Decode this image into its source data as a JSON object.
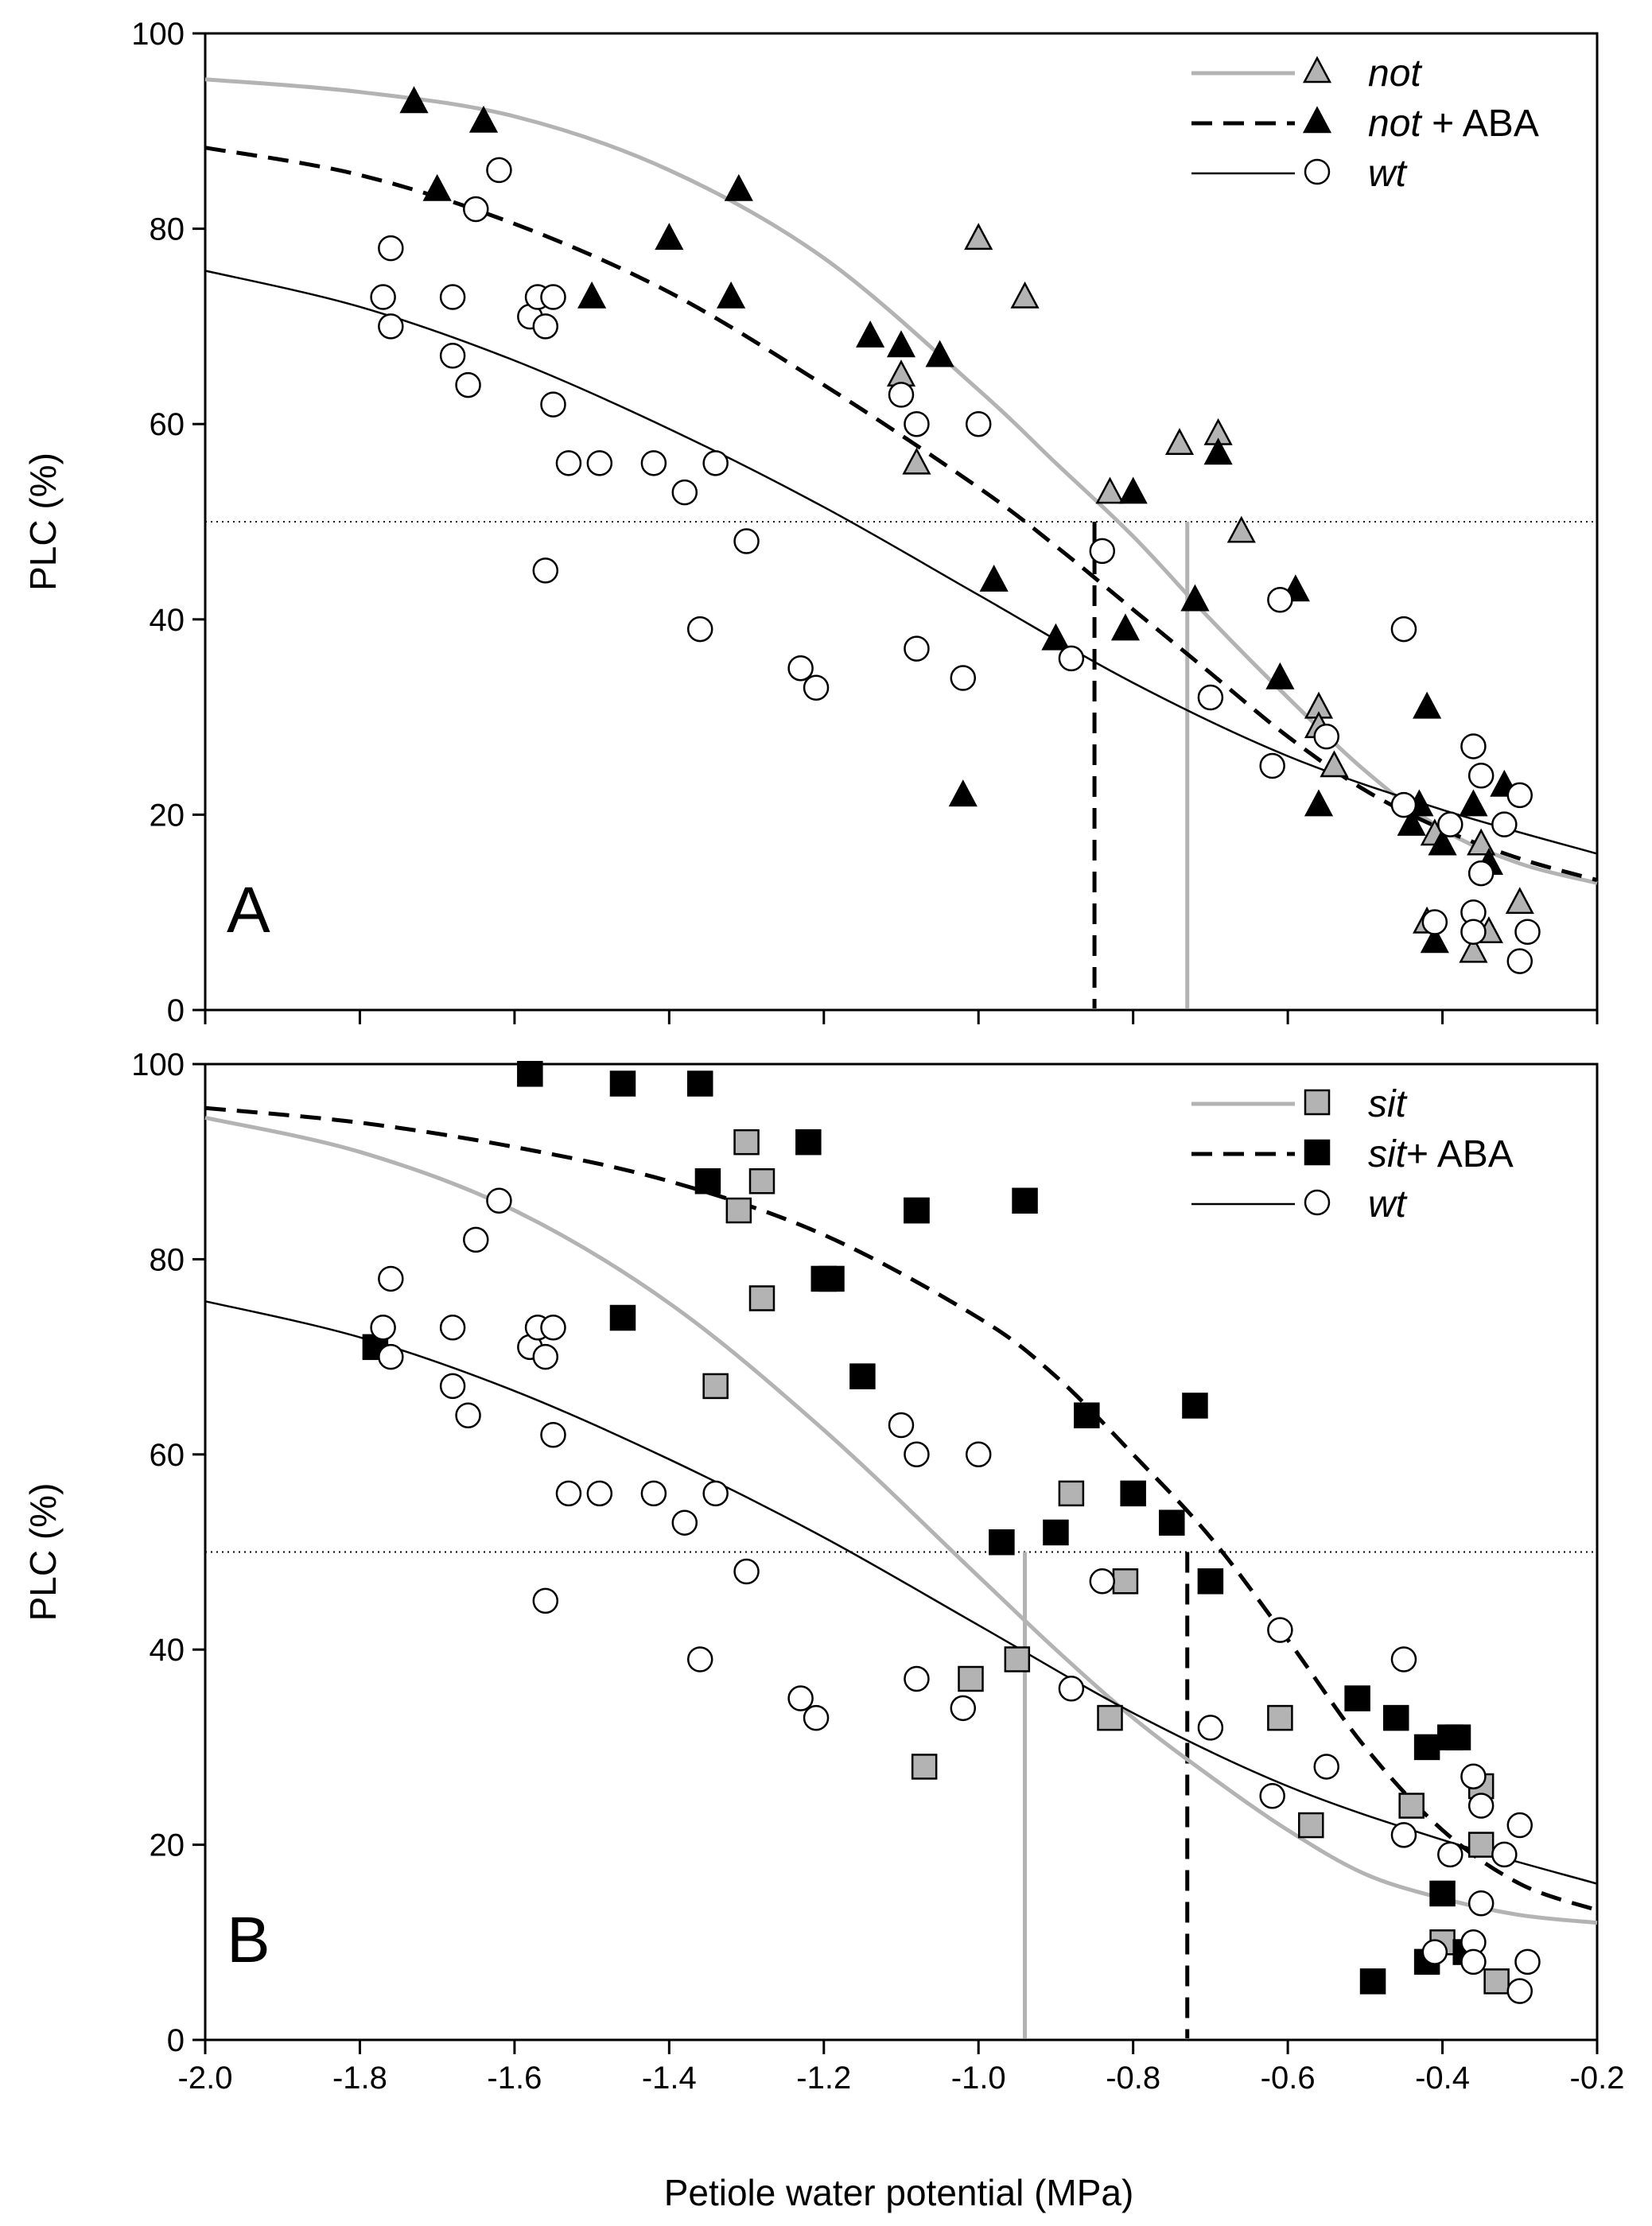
{
  "figure": {
    "x_label": "Petiole water potential (MPa)",
    "x_ticks": [
      "-2.0",
      "-1.8",
      "-1.6",
      "-1.4",
      "-1.2",
      "-1.0",
      "-0.8",
      "-0.6",
      "-0.4",
      "-0.2"
    ]
  },
  "chart_data": [
    {
      "type": "scatter",
      "panel": "A",
      "xlabel": "Petiole water potential (MPa)",
      "ylabel": "PLC (%)",
      "xlim": [
        -2.0,
        -0.2
      ],
      "ylim": [
        0,
        100
      ],
      "y_ticks": [
        "0",
        "20",
        "40",
        "60",
        "80",
        "100"
      ],
      "reference_line": 50,
      "legend": [
        {
          "name": "not",
          "suffix": "",
          "line": "solid-gray",
          "marker": "triangle",
          "fill": "#b3b3b3"
        },
        {
          "name": "not",
          "suffix": " + ABA",
          "line": "dashed-black",
          "marker": "triangle",
          "fill": "#000000"
        },
        {
          "name": "wt",
          "suffix": "",
          "line": "solid-thin-black",
          "marker": "circle",
          "fill": "#ffffff"
        }
      ],
      "p50_markers": [
        {
          "series": "not",
          "x": -0.73,
          "style": "solid-gray"
        },
        {
          "series": "not + ABA",
          "x": -0.85,
          "style": "dashed-black"
        }
      ],
      "curves": [
        {
          "name": "not fit",
          "style": "solid-gray",
          "x": [
            -2.0,
            -1.8,
            -1.6,
            -1.4,
            -1.2,
            -1.0,
            -0.9,
            -0.8,
            -0.7,
            -0.6,
            -0.5,
            -0.4,
            -0.3,
            -0.2
          ],
          "y": [
            95.3,
            94,
            91.5,
            86,
            77,
            63.5,
            56,
            48.5,
            40,
            32,
            24.5,
            18.5,
            15,
            13
          ]
        },
        {
          "name": "not + ABA fit",
          "style": "dashed-black",
          "x": [
            -2.0,
            -1.8,
            -1.6,
            -1.4,
            -1.2,
            -1.0,
            -0.9,
            -0.8,
            -0.7,
            -0.6,
            -0.5,
            -0.4,
            -0.3,
            -0.2
          ],
          "y": [
            88.3,
            85.5,
            80.5,
            73.5,
            64,
            53.5,
            47.5,
            41,
            34.5,
            28,
            22.5,
            18.5,
            15.5,
            13.3
          ]
        },
        {
          "name": "wt fit",
          "style": "solid-thin-black",
          "x": [
            -2.0,
            -1.8,
            -1.6,
            -1.4,
            -1.2,
            -1.0,
            -0.8,
            -0.6,
            -0.4,
            -0.2
          ],
          "y": [
            75.7,
            72,
            66.5,
            59.5,
            51.5,
            42.5,
            33.5,
            26,
            20.5,
            16
          ]
        }
      ],
      "series": [
        {
          "name": "not",
          "marker": "triangle",
          "fill": "#b3b3b3",
          "points": [
            [
              -1.0,
              79
            ],
            [
              -0.94,
              73
            ],
            [
              -1.1,
              65
            ],
            [
              -1.08,
              56
            ],
            [
              -0.83,
              53
            ],
            [
              -0.74,
              58
            ],
            [
              -0.69,
              59
            ],
            [
              -0.66,
              49
            ],
            [
              -0.56,
              31
            ],
            [
              -0.56,
              29
            ],
            [
              -0.54,
              25
            ],
            [
              -0.41,
              18
            ],
            [
              -0.42,
              9
            ],
            [
              -0.36,
              6
            ],
            [
              -0.35,
              17
            ],
            [
              -0.34,
              8
            ],
            [
              -0.3,
              11
            ]
          ]
        },
        {
          "name": "not + ABA",
          "marker": "triangle",
          "fill": "#000000",
          "points": [
            [
              -1.73,
              93
            ],
            [
              -1.64,
              91
            ],
            [
              -1.7,
              84
            ],
            [
              -1.31,
              84
            ],
            [
              -1.4,
              79
            ],
            [
              -1.5,
              73
            ],
            [
              -1.32,
              73
            ],
            [
              -1.14,
              69
            ],
            [
              -1.1,
              68
            ],
            [
              -1.05,
              67
            ],
            [
              -0.8,
              53
            ],
            [
              -0.69,
              57
            ],
            [
              -0.98,
              44
            ],
            [
              -0.9,
              38
            ],
            [
              -0.81,
              39
            ],
            [
              -0.72,
              42
            ],
            [
              -0.59,
              43
            ],
            [
              -0.61,
              34
            ],
            [
              -0.56,
              21
            ],
            [
              -1.02,
              22
            ],
            [
              -0.42,
              31
            ],
            [
              -0.43,
              21
            ],
            [
              -0.44,
              19
            ],
            [
              -0.4,
              17
            ],
            [
              -0.36,
              21
            ],
            [
              -0.34,
              15
            ],
            [
              -0.32,
              23
            ],
            [
              -0.41,
              7
            ]
          ]
        },
        {
          "name": "wt",
          "marker": "circle",
          "fill": "#ffffff",
          "points": [
            [
              -1.76,
              78
            ],
            [
              -1.77,
              73
            ],
            [
              -1.76,
              70
            ],
            [
              -1.68,
              73
            ],
            [
              -1.68,
              67
            ],
            [
              -1.66,
              64
            ],
            [
              -1.65,
              82
            ],
            [
              -1.62,
              86
            ],
            [
              -1.58,
              71
            ],
            [
              -1.57,
              73
            ],
            [
              -1.56,
              70
            ],
            [
              -1.55,
              73
            ],
            [
              -1.55,
              62
            ],
            [
              -1.53,
              56
            ],
            [
              -1.49,
              56
            ],
            [
              -1.56,
              45
            ],
            [
              -1.42,
              56
            ],
            [
              -1.38,
              53
            ],
            [
              -1.34,
              56
            ],
            [
              -1.36,
              39
            ],
            [
              -1.3,
              48
            ],
            [
              -1.23,
              35
            ],
            [
              -1.21,
              33
            ],
            [
              -1.1,
              63
            ],
            [
              -1.08,
              60
            ],
            [
              -1.08,
              37
            ],
            [
              -1.0,
              60
            ],
            [
              -1.02,
              34
            ],
            [
              -0.88,
              36
            ],
            [
              -0.84,
              47
            ],
            [
              -0.7,
              32
            ],
            [
              -0.62,
              25
            ],
            [
              -0.61,
              42
            ],
            [
              -0.55,
              28
            ],
            [
              -0.45,
              39
            ],
            [
              -0.45,
              21
            ],
            [
              -0.39,
              19
            ],
            [
              -0.36,
              27
            ],
            [
              -0.35,
              24
            ],
            [
              -0.35,
              14
            ],
            [
              -0.32,
              19
            ],
            [
              -0.3,
              22
            ],
            [
              -0.29,
              8
            ],
            [
              -0.3,
              5
            ],
            [
              -0.36,
              10
            ],
            [
              -0.36,
              8
            ],
            [
              -0.41,
              9
            ]
          ]
        }
      ]
    },
    {
      "type": "scatter",
      "panel": "B",
      "xlabel": "Petiole water potential (MPa)",
      "ylabel": "PLC (%)",
      "xlim": [
        -2.0,
        -0.2
      ],
      "ylim": [
        0,
        100
      ],
      "y_ticks": [
        "0",
        "20",
        "40",
        "60",
        "80",
        "100"
      ],
      "reference_line": 50,
      "legend": [
        {
          "name": "sit",
          "suffix": "",
          "line": "solid-gray",
          "marker": "square",
          "fill": "#b3b3b3"
        },
        {
          "name": "sit",
          "suffix": "+ ABA",
          "line": "dashed-black",
          "marker": "square",
          "fill": "#000000"
        },
        {
          "name": "wt",
          "suffix": "",
          "line": "solid-thin-black",
          "marker": "circle",
          "fill": "#ffffff"
        }
      ],
      "p50_markers": [
        {
          "series": "sit",
          "x": -0.94,
          "style": "solid-gray"
        },
        {
          "series": "sit + ABA",
          "x": -0.73,
          "style": "dashed-black"
        }
      ],
      "curves": [
        {
          "name": "sit fit",
          "style": "solid-gray",
          "x": [
            -2.0,
            -1.8,
            -1.6,
            -1.4,
            -1.2,
            -1.0,
            -0.9,
            -0.8,
            -0.7,
            -0.6,
            -0.5,
            -0.4,
            -0.3,
            -0.2
          ],
          "y": [
            94.5,
            91,
            85,
            75.5,
            62.5,
            47.5,
            40,
            33,
            27,
            21.5,
            17,
            14.5,
            12.8,
            12
          ]
        },
        {
          "name": "sit + ABA fit",
          "style": "dashed-black",
          "x": [
            -2.0,
            -1.8,
            -1.6,
            -1.4,
            -1.2,
            -1.0,
            -0.9,
            -0.8,
            -0.7,
            -0.6,
            -0.5,
            -0.4,
            -0.3,
            -0.2
          ],
          "y": [
            95.5,
            94,
            91.5,
            88,
            82.5,
            74,
            68,
            60,
            51.5,
            41,
            30,
            21.5,
            16,
            13.3
          ]
        },
        {
          "name": "wt fit",
          "style": "solid-thin-black",
          "x": [
            -2.0,
            -1.8,
            -1.6,
            -1.4,
            -1.2,
            -1.0,
            -0.8,
            -0.6,
            -0.4,
            -0.2
          ],
          "y": [
            75.7,
            72,
            66.5,
            59.5,
            51.5,
            42.5,
            33.5,
            26,
            20.5,
            16
          ]
        }
      ],
      "series": [
        {
          "name": "sit",
          "marker": "square",
          "fill": "#b3b3b3",
          "points": [
            [
              -1.3,
              92
            ],
            [
              -1.28,
              88
            ],
            [
              -1.31,
              85
            ],
            [
              -1.28,
              76
            ],
            [
              -1.34,
              67
            ],
            [
              -1.08,
              85
            ],
            [
              -0.88,
              56
            ],
            [
              -0.81,
              47
            ],
            [
              -0.95,
              39
            ],
            [
              -1.01,
              37
            ],
            [
              -0.83,
              33
            ],
            [
              -1.07,
              28
            ],
            [
              -0.61,
              33
            ],
            [
              -0.57,
              22
            ],
            [
              -0.44,
              24
            ],
            [
              -0.4,
              10
            ],
            [
              -0.35,
              26
            ],
            [
              -0.35,
              20
            ],
            [
              -0.33,
              6
            ]
          ]
        },
        {
          "name": "sit + ABA",
          "marker": "square",
          "fill": "#000000",
          "points": [
            [
              -1.58,
              99
            ],
            [
              -1.46,
              98
            ],
            [
              -1.36,
              98
            ],
            [
              -1.35,
              88
            ],
            [
              -1.22,
              92
            ],
            [
              -1.08,
              85
            ],
            [
              -0.94,
              86
            ],
            [
              -1.2,
              78
            ],
            [
              -1.19,
              78
            ],
            [
              -1.15,
              68
            ],
            [
              -1.46,
              74
            ],
            [
              -1.78,
              71
            ],
            [
              -0.86,
              64
            ],
            [
              -0.72,
              65
            ],
            [
              -0.8,
              56
            ],
            [
              -0.75,
              53
            ],
            [
              -0.97,
              51
            ],
            [
              -0.9,
              52
            ],
            [
              -0.7,
              47
            ],
            [
              -0.51,
              35
            ],
            [
              -0.46,
              33
            ],
            [
              -0.42,
              30
            ],
            [
              -0.39,
              31
            ],
            [
              -0.38,
              31
            ],
            [
              -0.4,
              15
            ],
            [
              -0.49,
              6
            ],
            [
              -0.42,
              8
            ],
            [
              -0.37,
              9
            ]
          ]
        },
        {
          "name": "wt",
          "marker": "circle",
          "fill": "#ffffff",
          "points": [
            [
              -1.76,
              78
            ],
            [
              -1.77,
              73
            ],
            [
              -1.76,
              70
            ],
            [
              -1.68,
              73
            ],
            [
              -1.68,
              67
            ],
            [
              -1.66,
              64
            ],
            [
              -1.65,
              82
            ],
            [
              -1.62,
              86
            ],
            [
              -1.58,
              71
            ],
            [
              -1.57,
              73
            ],
            [
              -1.56,
              70
            ],
            [
              -1.55,
              73
            ],
            [
              -1.55,
              62
            ],
            [
              -1.53,
              56
            ],
            [
              -1.49,
              56
            ],
            [
              -1.56,
              45
            ],
            [
              -1.42,
              56
            ],
            [
              -1.38,
              53
            ],
            [
              -1.34,
              56
            ],
            [
              -1.36,
              39
            ],
            [
              -1.3,
              48
            ],
            [
              -1.23,
              35
            ],
            [
              -1.21,
              33
            ],
            [
              -1.1,
              63
            ],
            [
              -1.08,
              60
            ],
            [
              -1.08,
              37
            ],
            [
              -1.0,
              60
            ],
            [
              -1.02,
              34
            ],
            [
              -0.88,
              36
            ],
            [
              -0.84,
              47
            ],
            [
              -0.7,
              32
            ],
            [
              -0.62,
              25
            ],
            [
              -0.61,
              42
            ],
            [
              -0.55,
              28
            ],
            [
              -0.45,
              39
            ],
            [
              -0.45,
              21
            ],
            [
              -0.39,
              19
            ],
            [
              -0.36,
              27
            ],
            [
              -0.35,
              24
            ],
            [
              -0.35,
              14
            ],
            [
              -0.32,
              19
            ],
            [
              -0.3,
              22
            ],
            [
              -0.29,
              8
            ],
            [
              -0.3,
              5
            ],
            [
              -0.36,
              10
            ],
            [
              -0.36,
              8
            ],
            [
              -0.41,
              9
            ]
          ]
        }
      ]
    }
  ]
}
